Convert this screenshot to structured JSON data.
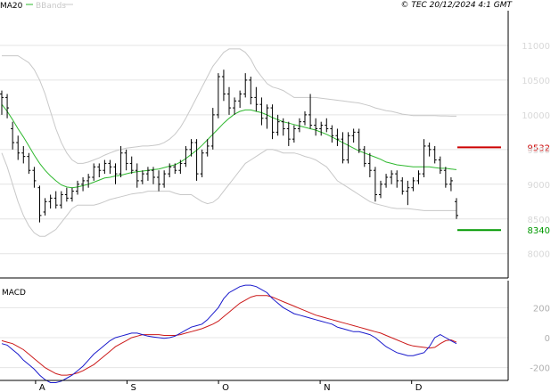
{
  "header": {
    "legend_ma": "MA20",
    "legend_bb": "BBands",
    "copyright": "© TEC 20/12/2024 4:1 GMT"
  },
  "colors": {
    "ma": "#2eb82e",
    "bbands": "#c8c8c8",
    "candles": "#000000",
    "resistance": "#cc0000",
    "support": "#009900",
    "macd": "#1a1acc",
    "signal": "#cc1a1a",
    "grid": "#e4e4e4"
  },
  "chart_data": [
    {
      "type": "line",
      "subtype": "ohlc",
      "y_ticks": [
        "11000",
        "10500",
        "10000",
        "9500",
        "9000",
        "8500",
        "8000"
      ],
      "ylim": [
        7650,
        11500
      ],
      "x_ticks": [
        "A",
        "S",
        "O",
        "N",
        "D"
      ],
      "grid": true,
      "legend": "top-left",
      "levels": [
        {
          "label": "9532",
          "value": 9532
        },
        {
          "label": "8340",
          "value": 8340
        }
      ],
      "ohlc": [
        [
          10300,
          10350,
          10000,
          10250
        ],
        [
          10250,
          10300,
          9950,
          10100
        ],
        [
          9800,
          9900,
          9500,
          9600
        ],
        [
          9600,
          9700,
          9350,
          9450
        ],
        [
          9450,
          9550,
          9300,
          9400
        ],
        [
          9400,
          9450,
          9150,
          9200
        ],
        [
          9200,
          9250,
          8950,
          9050
        ],
        [
          8950,
          8980,
          8450,
          8550
        ],
        [
          8600,
          8800,
          8550,
          8750
        ],
        [
          8750,
          8850,
          8650,
          8800
        ],
        [
          8800,
          8900,
          8650,
          8700
        ],
        [
          8700,
          8900,
          8650,
          8850
        ],
        [
          8850,
          8950,
          8750,
          8800
        ],
        [
          8800,
          8950,
          8750,
          8900
        ],
        [
          8900,
          9050,
          8850,
          9000
        ],
        [
          9000,
          9100,
          8900,
          9050
        ],
        [
          9050,
          9150,
          8950,
          9100
        ],
        [
          9100,
          9300,
          9050,
          9250
        ],
        [
          9250,
          9300,
          9100,
          9200
        ],
        [
          9200,
          9350,
          9150,
          9300
        ],
        [
          9300,
          9350,
          9150,
          9250
        ],
        [
          9250,
          9300,
          9000,
          9150
        ],
        [
          9150,
          9550,
          9100,
          9450
        ],
        [
          9450,
          9500,
          9200,
          9300
        ],
        [
          9300,
          9400,
          9150,
          9200
        ],
        [
          9200,
          9300,
          8950,
          9050
        ],
        [
          9050,
          9200,
          9000,
          9150
        ],
        [
          9150,
          9250,
          9050,
          9200
        ],
        [
          9200,
          9250,
          9000,
          9100
        ],
        [
          9100,
          9200,
          8900,
          9000
        ],
        [
          9000,
          9200,
          8950,
          9150
        ],
        [
          9150,
          9300,
          9100,
          9250
        ],
        [
          9250,
          9300,
          9150,
          9200
        ],
        [
          9200,
          9350,
          9150,
          9300
        ],
        [
          9300,
          9550,
          9250,
          9500
        ],
        [
          9500,
          9650,
          9400,
          9600
        ],
        [
          9600,
          9650,
          9050,
          9150
        ],
        [
          9150,
          9500,
          9100,
          9450
        ],
        [
          9450,
          9650,
          9400,
          9550
        ],
        [
          9550,
          10100,
          9500,
          10000
        ],
        [
          10000,
          10600,
          9950,
          10550
        ],
        [
          10550,
          10650,
          10200,
          10300
        ],
        [
          10300,
          10400,
          10000,
          10100
        ],
        [
          10100,
          10250,
          10000,
          10200
        ],
        [
          10200,
          10350,
          10100,
          10300
        ],
        [
          10300,
          10600,
          10250,
          10500
        ],
        [
          10500,
          10550,
          10150,
          10250
        ],
        [
          10250,
          10400,
          10050,
          10150
        ],
        [
          10150,
          10250,
          9850,
          9950
        ],
        [
          9950,
          10150,
          9800,
          10100
        ],
        [
          10100,
          10150,
          9650,
          9750
        ],
        [
          9750,
          10000,
          9700,
          9900
        ],
        [
          9900,
          9950,
          9700,
          9800
        ],
        [
          9800,
          9900,
          9550,
          9650
        ],
        [
          9650,
          9850,
          9600,
          9800
        ],
        [
          9800,
          9950,
          9750,
          9900
        ],
        [
          9900,
          10050,
          9850,
          10000
        ],
        [
          10000,
          10300,
          9800,
          9850
        ],
        [
          9850,
          9950,
          9700,
          9800
        ],
        [
          9800,
          9900,
          9700,
          9850
        ],
        [
          9850,
          9950,
          9750,
          9800
        ],
        [
          9800,
          9850,
          9600,
          9700
        ],
        [
          9700,
          9800,
          9550,
          9650
        ],
        [
          9650,
          9750,
          9300,
          9350
        ],
        [
          9350,
          9750,
          9300,
          9700
        ],
        [
          9700,
          9800,
          9600,
          9750
        ],
        [
          9750,
          9800,
          9450,
          9500
        ],
        [
          9500,
          9550,
          9250,
          9300
        ],
        [
          9300,
          9450,
          9100,
          9200
        ],
        [
          9200,
          9250,
          8750,
          8850
        ],
        [
          8850,
          9050,
          8800,
          9000
        ],
        [
          9000,
          9150,
          8950,
          9100
        ],
        [
          9100,
          9200,
          9000,
          9150
        ],
        [
          9150,
          9200,
          8950,
          9050
        ],
        [
          9050,
          9100,
          8850,
          8900
        ],
        [
          8900,
          9050,
          8700,
          8950
        ],
        [
          8950,
          9100,
          8900,
          9050
        ],
        [
          9050,
          9200,
          9000,
          9150
        ],
        [
          9150,
          9650,
          9100,
          9550
        ],
        [
          9550,
          9600,
          9400,
          9500
        ],
        [
          9500,
          9550,
          9300,
          9350
        ],
        [
          9350,
          9400,
          9150,
          9200
        ],
        [
          9200,
          9250,
          8950,
          9000
        ],
        [
          9000,
          9100,
          8900,
          9050
        ],
        [
          8750,
          8800,
          8500,
          8550
        ]
      ],
      "ma20": [
        10150,
        10050,
        9930,
        9800,
        9680,
        9550,
        9420,
        9300,
        9200,
        9120,
        9050,
        8990,
        8960,
        8950,
        8960,
        8980,
        9000,
        9030,
        9060,
        9090,
        9100,
        9120,
        9130,
        9150,
        9170,
        9180,
        9190,
        9200,
        9210,
        9220,
        9240,
        9260,
        9280,
        9320,
        9370,
        9430,
        9490,
        9560,
        9640,
        9720,
        9800,
        9880,
        9950,
        10010,
        10050,
        10070,
        10070,
        10050,
        10030,
        10000,
        9960,
        9930,
        9900,
        9880,
        9860,
        9840,
        9820,
        9800,
        9780,
        9750,
        9720,
        9680,
        9640,
        9600,
        9560,
        9520,
        9480,
        9450,
        9420,
        9390,
        9360,
        9320,
        9300,
        9280,
        9270,
        9260,
        9250,
        9250,
        9250,
        9250,
        9240,
        9230,
        9230,
        9220,
        9210
      ],
      "bb_upper": [
        10850,
        10850,
        10850,
        10850,
        10800,
        10750,
        10650,
        10500,
        10300,
        10050,
        9800,
        9600,
        9450,
        9350,
        9300,
        9300,
        9320,
        9350,
        9380,
        9420,
        9450,
        9480,
        9500,
        9520,
        9530,
        9540,
        9550,
        9550,
        9560,
        9570,
        9600,
        9650,
        9720,
        9820,
        9950,
        10100,
        10250,
        10400,
        10550,
        10700,
        10800,
        10900,
        10950,
        10950,
        10950,
        10900,
        10800,
        10650,
        10550,
        10450,
        10400,
        10380,
        10350,
        10300,
        10250,
        10250,
        10250,
        10250,
        10250,
        10240,
        10230,
        10220,
        10210,
        10200,
        10190,
        10180,
        10170,
        10150,
        10130,
        10100,
        10080,
        10060,
        10050,
        10030,
        10010,
        10000,
        9990,
        9990,
        9990,
        9990,
        9990,
        9985,
        9985,
        9980,
        9980
      ],
      "bb_lower": [
        9450,
        9250,
        9000,
        8750,
        8550,
        8400,
        8300,
        8250,
        8250,
        8300,
        8350,
        8450,
        8550,
        8650,
        8700,
        8700,
        8700,
        8700,
        8720,
        8750,
        8780,
        8800,
        8820,
        8840,
        8860,
        8870,
        8880,
        8900,
        8900,
        8900,
        8900,
        8900,
        8870,
        8850,
        8850,
        8850,
        8800,
        8750,
        8720,
        8740,
        8800,
        8900,
        9000,
        9100,
        9200,
        9300,
        9350,
        9400,
        9450,
        9500,
        9500,
        9480,
        9450,
        9450,
        9450,
        9430,
        9400,
        9380,
        9350,
        9300,
        9250,
        9150,
        9050,
        9000,
        8950,
        8900,
        8850,
        8800,
        8750,
        8720,
        8700,
        8680,
        8660,
        8650,
        8650,
        8650,
        8640,
        8630,
        8620,
        8620,
        8620,
        8620,
        8620,
        8620,
        8620
      ]
    },
    {
      "type": "line",
      "title": "MACD",
      "y_ticks": [
        "200",
        "0",
        "-200"
      ],
      "ylim": [
        -285,
        380
      ],
      "grid": true,
      "series": [
        {
          "values": [
            -40,
            -50,
            -80,
            -110,
            -150,
            -180,
            -210,
            -250,
            -280,
            -300,
            -300,
            -290,
            -270,
            -250,
            -220,
            -190,
            -150,
            -110,
            -80,
            -50,
            -20,
            0,
            10,
            20,
            30,
            30,
            20,
            10,
            5,
            0,
            -5,
            0,
            10,
            30,
            50,
            70,
            80,
            90,
            120,
            160,
            200,
            260,
            300,
            320,
            340,
            350,
            350,
            340,
            320,
            300,
            260,
            230,
            200,
            180,
            160,
            150,
            140,
            130,
            120,
            110,
            100,
            90,
            70,
            60,
            50,
            40,
            40,
            30,
            20,
            0,
            -30,
            -60,
            -80,
            -100,
            -110,
            -120,
            -120,
            -110,
            -100,
            -60,
            0,
            20,
            0,
            -20,
            -40
          ]
        },
        {
          "values": [
            -20,
            -30,
            -40,
            -60,
            -80,
            -110,
            -140,
            -170,
            -200,
            -220,
            -240,
            -250,
            -250,
            -245,
            -235,
            -220,
            -200,
            -180,
            -150,
            -120,
            -90,
            -60,
            -40,
            -20,
            0,
            10,
            20,
            20,
            20,
            20,
            15,
            15,
            15,
            20,
            30,
            40,
            50,
            60,
            75,
            90,
            110,
            140,
            170,
            200,
            230,
            250,
            270,
            280,
            280,
            280,
            270,
            255,
            240,
            225,
            210,
            195,
            180,
            165,
            150,
            140,
            130,
            120,
            110,
            100,
            90,
            80,
            70,
            60,
            50,
            40,
            30,
            15,
            0,
            -15,
            -30,
            -45,
            -55,
            -60,
            -65,
            -70,
            -65,
            -40,
            -20,
            -15,
            -30
          ]
        }
      ]
    }
  ],
  "x_ticks_pos": [
    0.07,
    0.25,
    0.43,
    0.63,
    0.81
  ]
}
